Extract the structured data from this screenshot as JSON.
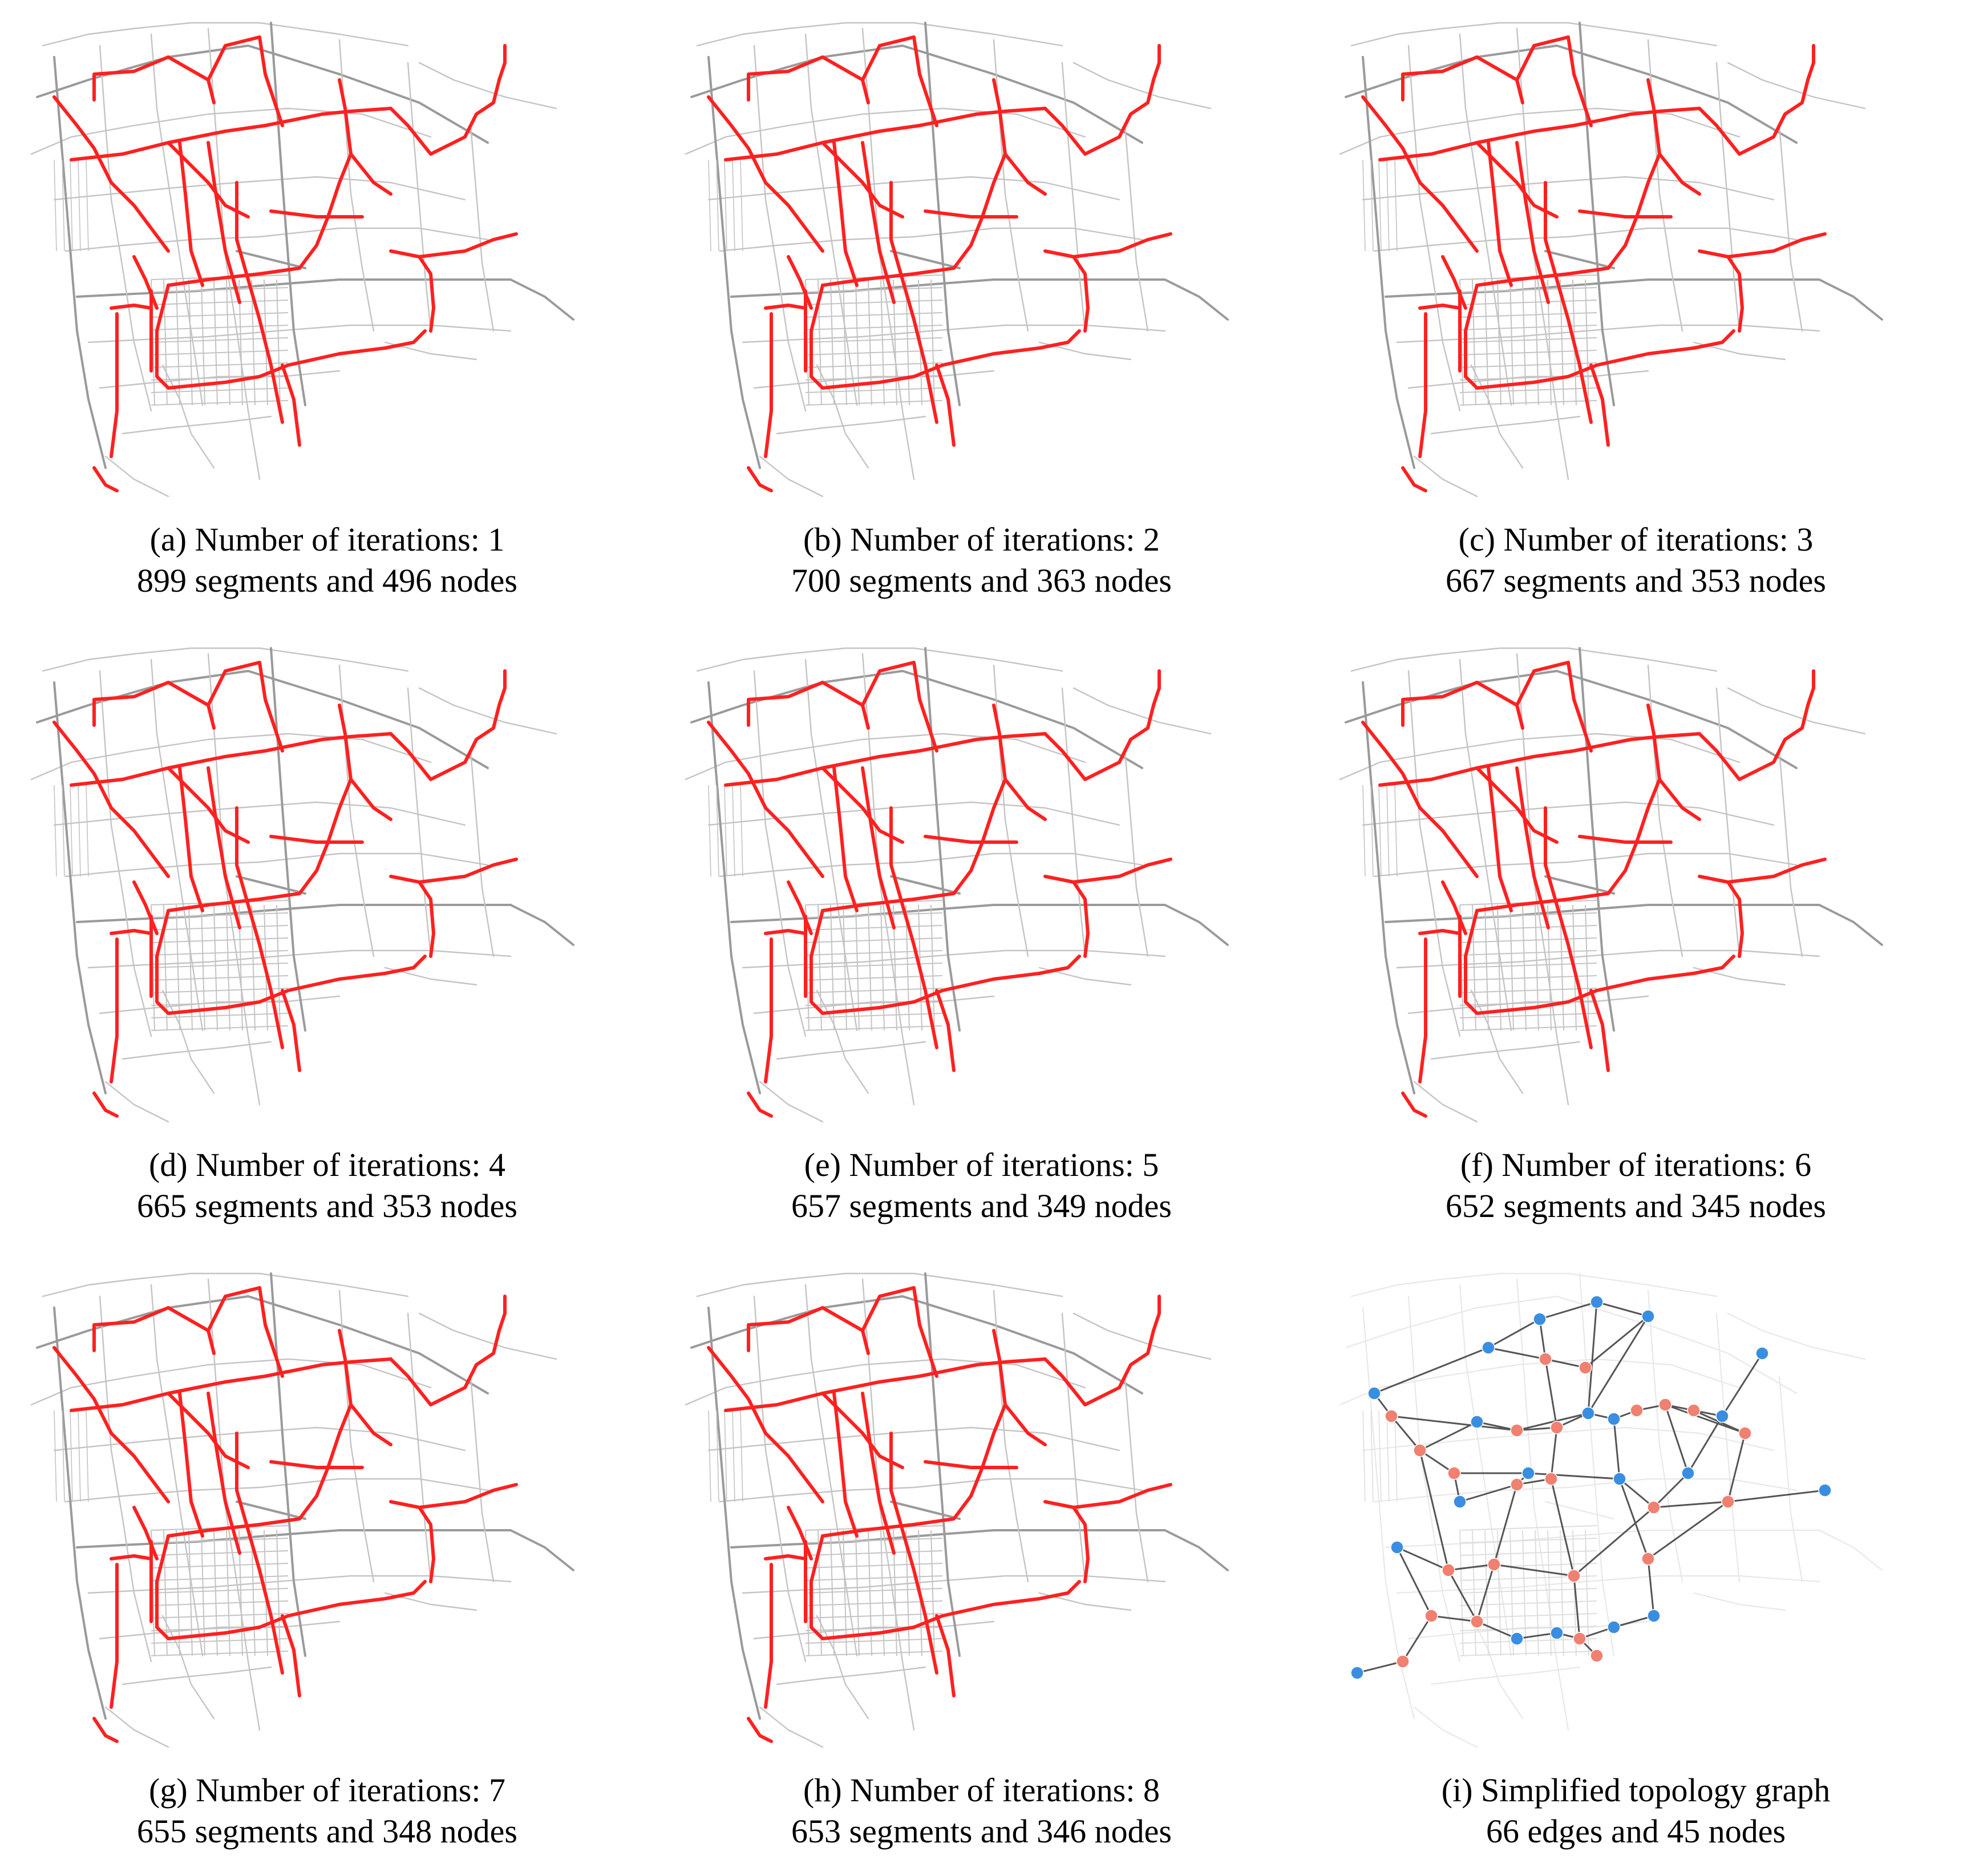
{
  "figure": {
    "panels": [
      {
        "caption_line1": "(a) Number of iterations: 1",
        "caption_line2": "899 segments and 496 nodes",
        "kind": "roads"
      },
      {
        "caption_line1": "(b) Number of iterations: 2",
        "caption_line2": "700 segments and 363 nodes",
        "kind": "roads"
      },
      {
        "caption_line1": "(c) Number of iterations: 3",
        "caption_line2": "667 segments and 353 nodes",
        "kind": "roads"
      },
      {
        "caption_line1": "(d) Number of iterations: 4",
        "caption_line2": "665 segments and 353 nodes",
        "kind": "roads"
      },
      {
        "caption_line1": "(e) Number of iterations: 5",
        "caption_line2": "657 segments and 349 nodes",
        "kind": "roads"
      },
      {
        "caption_line1": "(f) Number of iterations: 6",
        "caption_line2": "652 segments and 345 nodes",
        "kind": "roads"
      },
      {
        "caption_line1": "(g) Number of iterations: 7",
        "caption_line2": "655 segments and 348 nodes",
        "kind": "roads"
      },
      {
        "caption_line1": "(h) Number of iterations: 8",
        "caption_line2": "653 segments and 346 nodes",
        "kind": "roads"
      },
      {
        "caption_line1": "(i) Simplified topology graph",
        "caption_line2": "66 edges and 45 nodes",
        "kind": "graph"
      }
    ]
  },
  "colors": {
    "base_road": "#c4c4c4",
    "base_road_dark": "#9a9a9a",
    "major_road": "#ff2020",
    "graph_edge": "#555555",
    "node_orange": "#f08070",
    "node_blue": "#3a8ee0"
  }
}
